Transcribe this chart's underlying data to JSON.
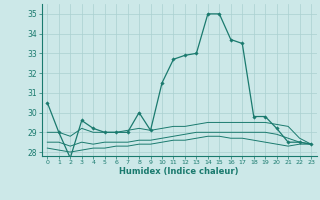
{
  "xlabel": "Humidex (Indice chaleur)",
  "x_values": [
    0,
    1,
    2,
    3,
    4,
    5,
    6,
    7,
    8,
    9,
    10,
    11,
    12,
    13,
    14,
    15,
    16,
    17,
    18,
    19,
    20,
    21,
    22,
    23
  ],
  "main_line": [
    30.5,
    29.0,
    27.7,
    29.6,
    29.2,
    29.0,
    29.0,
    29.0,
    30.0,
    29.1,
    31.5,
    32.7,
    32.9,
    33.0,
    35.0,
    35.0,
    33.7,
    33.5,
    29.8,
    29.8,
    29.2,
    28.5,
    28.5,
    28.4
  ],
  "line2": [
    29.0,
    29.0,
    28.8,
    29.2,
    29.0,
    29.0,
    29.0,
    29.1,
    29.2,
    29.1,
    29.2,
    29.3,
    29.3,
    29.4,
    29.5,
    29.5,
    29.5,
    29.5,
    29.5,
    29.5,
    29.4,
    29.3,
    28.7,
    28.4
  ],
  "line3": [
    28.5,
    28.5,
    28.3,
    28.5,
    28.4,
    28.5,
    28.5,
    28.5,
    28.6,
    28.6,
    28.7,
    28.8,
    28.9,
    29.0,
    29.0,
    29.0,
    29.0,
    29.0,
    29.0,
    29.0,
    28.9,
    28.7,
    28.5,
    28.4
  ],
  "line4": [
    28.2,
    28.1,
    28.0,
    28.1,
    28.2,
    28.2,
    28.3,
    28.3,
    28.4,
    28.4,
    28.5,
    28.6,
    28.6,
    28.7,
    28.8,
    28.8,
    28.7,
    28.7,
    28.6,
    28.5,
    28.4,
    28.3,
    28.4,
    28.4
  ],
  "line_color": "#1a7a6e",
  "bg_color": "#cce8e8",
  "grid_color": "#aad0d0",
  "ylim": [
    27.8,
    35.5
  ],
  "yticks": [
    28,
    29,
    30,
    31,
    32,
    33,
    34,
    35
  ],
  "xlim": [
    -0.5,
    23.5
  ]
}
